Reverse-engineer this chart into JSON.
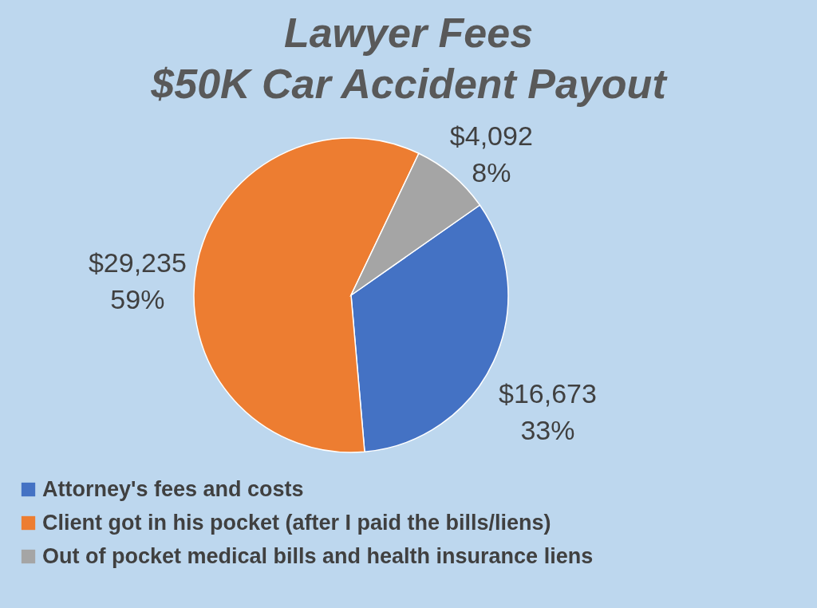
{
  "chart_data": {
    "type": "pie",
    "title": "Lawyer Fees\n$50K Car Accident Payout",
    "categories": [
      "Attorney's fees and costs",
      "Client got in his pocket (after I paid the bills/liens)",
      "Out of pocket medical bills and health insurance liens"
    ],
    "values": [
      16673,
      29235,
      4092
    ],
    "colors": [
      "#4472c4",
      "#ed7d31",
      "#a5a5a5"
    ],
    "value_labels": [
      "$16,673\n33%",
      "$29,235\n59%",
      "$4,092\n8%"
    ],
    "legend": "bottom left"
  }
}
